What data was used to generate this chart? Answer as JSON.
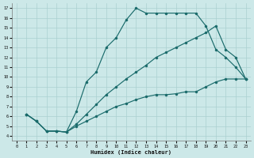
{
  "xlabel": "Humidex (Indice chaleur)",
  "bg_color": "#cce8e8",
  "line_color": "#1a6b6b",
  "grid_color": "#aad0d0",
  "xlim": [
    -0.5,
    23.5
  ],
  "ylim": [
    3.5,
    17.5
  ],
  "xticks": [
    0,
    1,
    2,
    3,
    4,
    5,
    6,
    7,
    8,
    9,
    10,
    11,
    12,
    13,
    14,
    15,
    16,
    17,
    18,
    19,
    20,
    21,
    22,
    23
  ],
  "yticks": [
    4,
    5,
    6,
    7,
    8,
    9,
    10,
    11,
    12,
    13,
    14,
    15,
    16,
    17
  ],
  "c1_x": [
    1,
    2,
    3,
    4,
    5,
    6,
    7,
    8,
    9,
    10,
    11,
    12,
    13,
    14,
    15,
    16,
    17,
    18,
    19,
    20,
    21,
    22,
    23
  ],
  "c1_y": [
    6.2,
    5.5,
    4.5,
    4.5,
    4.4,
    6.5,
    9.5,
    10.5,
    13.0,
    14.0,
    15.8,
    17.0,
    16.5,
    16.5,
    16.5,
    16.5,
    16.5,
    16.5,
    15.2,
    12.8,
    12.0,
    11.0,
    9.8
  ],
  "c2_x": [
    1,
    2,
    3,
    4,
    5,
    6,
    7,
    8,
    9,
    10,
    11,
    12,
    13,
    14,
    15,
    16,
    17,
    18,
    19,
    20,
    21,
    22,
    23
  ],
  "c2_y": [
    6.2,
    5.5,
    4.5,
    4.5,
    4.4,
    5.2,
    6.2,
    7.2,
    8.2,
    9.0,
    9.8,
    10.5,
    11.2,
    12.0,
    12.5,
    13.0,
    13.5,
    14.0,
    14.5,
    15.2,
    12.8,
    12.0,
    9.8
  ],
  "c3_x": [
    1,
    2,
    3,
    4,
    5,
    6,
    7,
    8,
    9,
    10,
    11,
    12,
    13,
    14,
    15,
    16,
    17,
    18,
    19,
    20,
    21,
    22,
    23
  ],
  "c3_y": [
    6.2,
    5.5,
    4.5,
    4.5,
    4.4,
    5.0,
    5.5,
    6.0,
    6.5,
    7.0,
    7.3,
    7.7,
    8.0,
    8.2,
    8.2,
    8.3,
    8.5,
    8.5,
    9.0,
    9.5,
    9.8,
    9.8,
    9.8
  ]
}
